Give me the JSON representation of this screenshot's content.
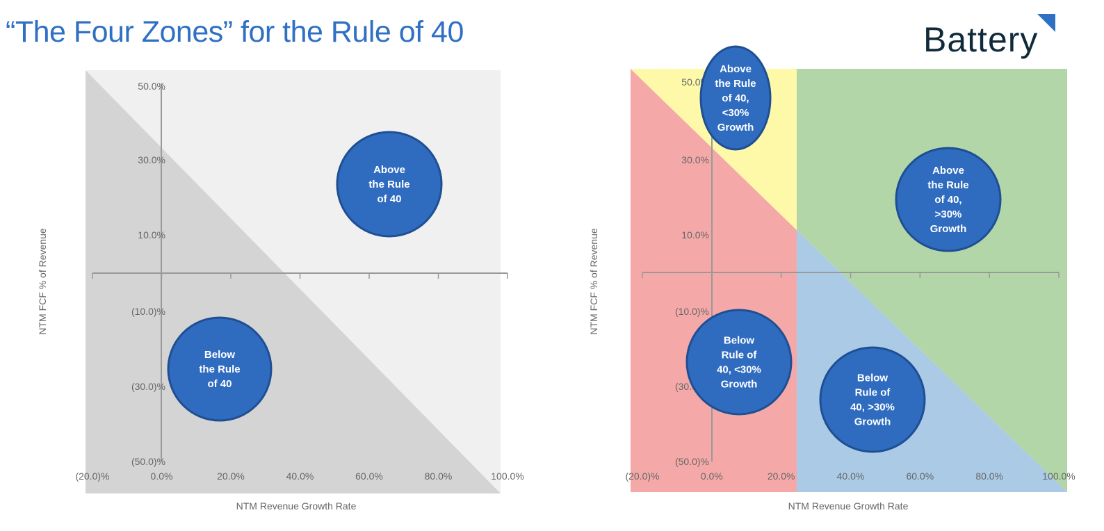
{
  "title": "“The Four Zones” for the Rule of 40",
  "logo": {
    "text": "Battery",
    "accent_color": "#2f6fc4"
  },
  "colors": {
    "circle": "#2f6cc0",
    "circle_border": "#1f4f93",
    "axis": "#999999",
    "left_above": "#f0f0f0",
    "left_below": "#d4d4d4",
    "red": "#f4a9a8",
    "yellow": "#fdf9a8",
    "green": "#b2d6a8",
    "blue": "#abcae5"
  },
  "left_chart": {
    "xlabel": "NTM Revenue Growth Rate",
    "ylabel": "NTM FCF % of Revenue",
    "x_ticks": [
      "(20.0)%",
      "0.0%",
      "20.0%",
      "40.0%",
      "60.0%",
      "80.0%",
      "100.0%"
    ],
    "y_ticks": [
      "50.0%",
      "30.0%",
      "10.0%",
      "(10.0)%",
      "(30.0)%",
      "(50.0)%"
    ],
    "zones": [
      {
        "lines": [
          "Above",
          "the Rule",
          "of 40"
        ]
      },
      {
        "lines": [
          "Below",
          "the Rule",
          "of 40"
        ]
      }
    ]
  },
  "right_chart": {
    "xlabel": "NTM Revenue Growth Rate",
    "ylabel": "NTM FCF % of Revenue",
    "x_ticks": [
      "(20.0)%",
      "0.0%",
      "20.0%",
      "40.0%",
      "60.0%",
      "80.0%",
      "100.0%"
    ],
    "y_ticks": [
      "50.0%",
      "30.0%",
      "10.0%",
      "(10.0)%",
      "(30.0)%",
      "(50.0)%"
    ],
    "zones": [
      {
        "lines": [
          "Above",
          "the Rule",
          "of 40,",
          "<30%",
          "Growth"
        ]
      },
      {
        "lines": [
          "Above",
          "the Rule",
          "of 40,",
          ">30%",
          "Growth"
        ]
      },
      {
        "lines": [
          "Below",
          "Rule of",
          "40, <30%",
          "Growth"
        ]
      },
      {
        "lines": [
          "Below",
          "Rule of",
          "40, >30%",
          "Growth"
        ]
      }
    ]
  }
}
